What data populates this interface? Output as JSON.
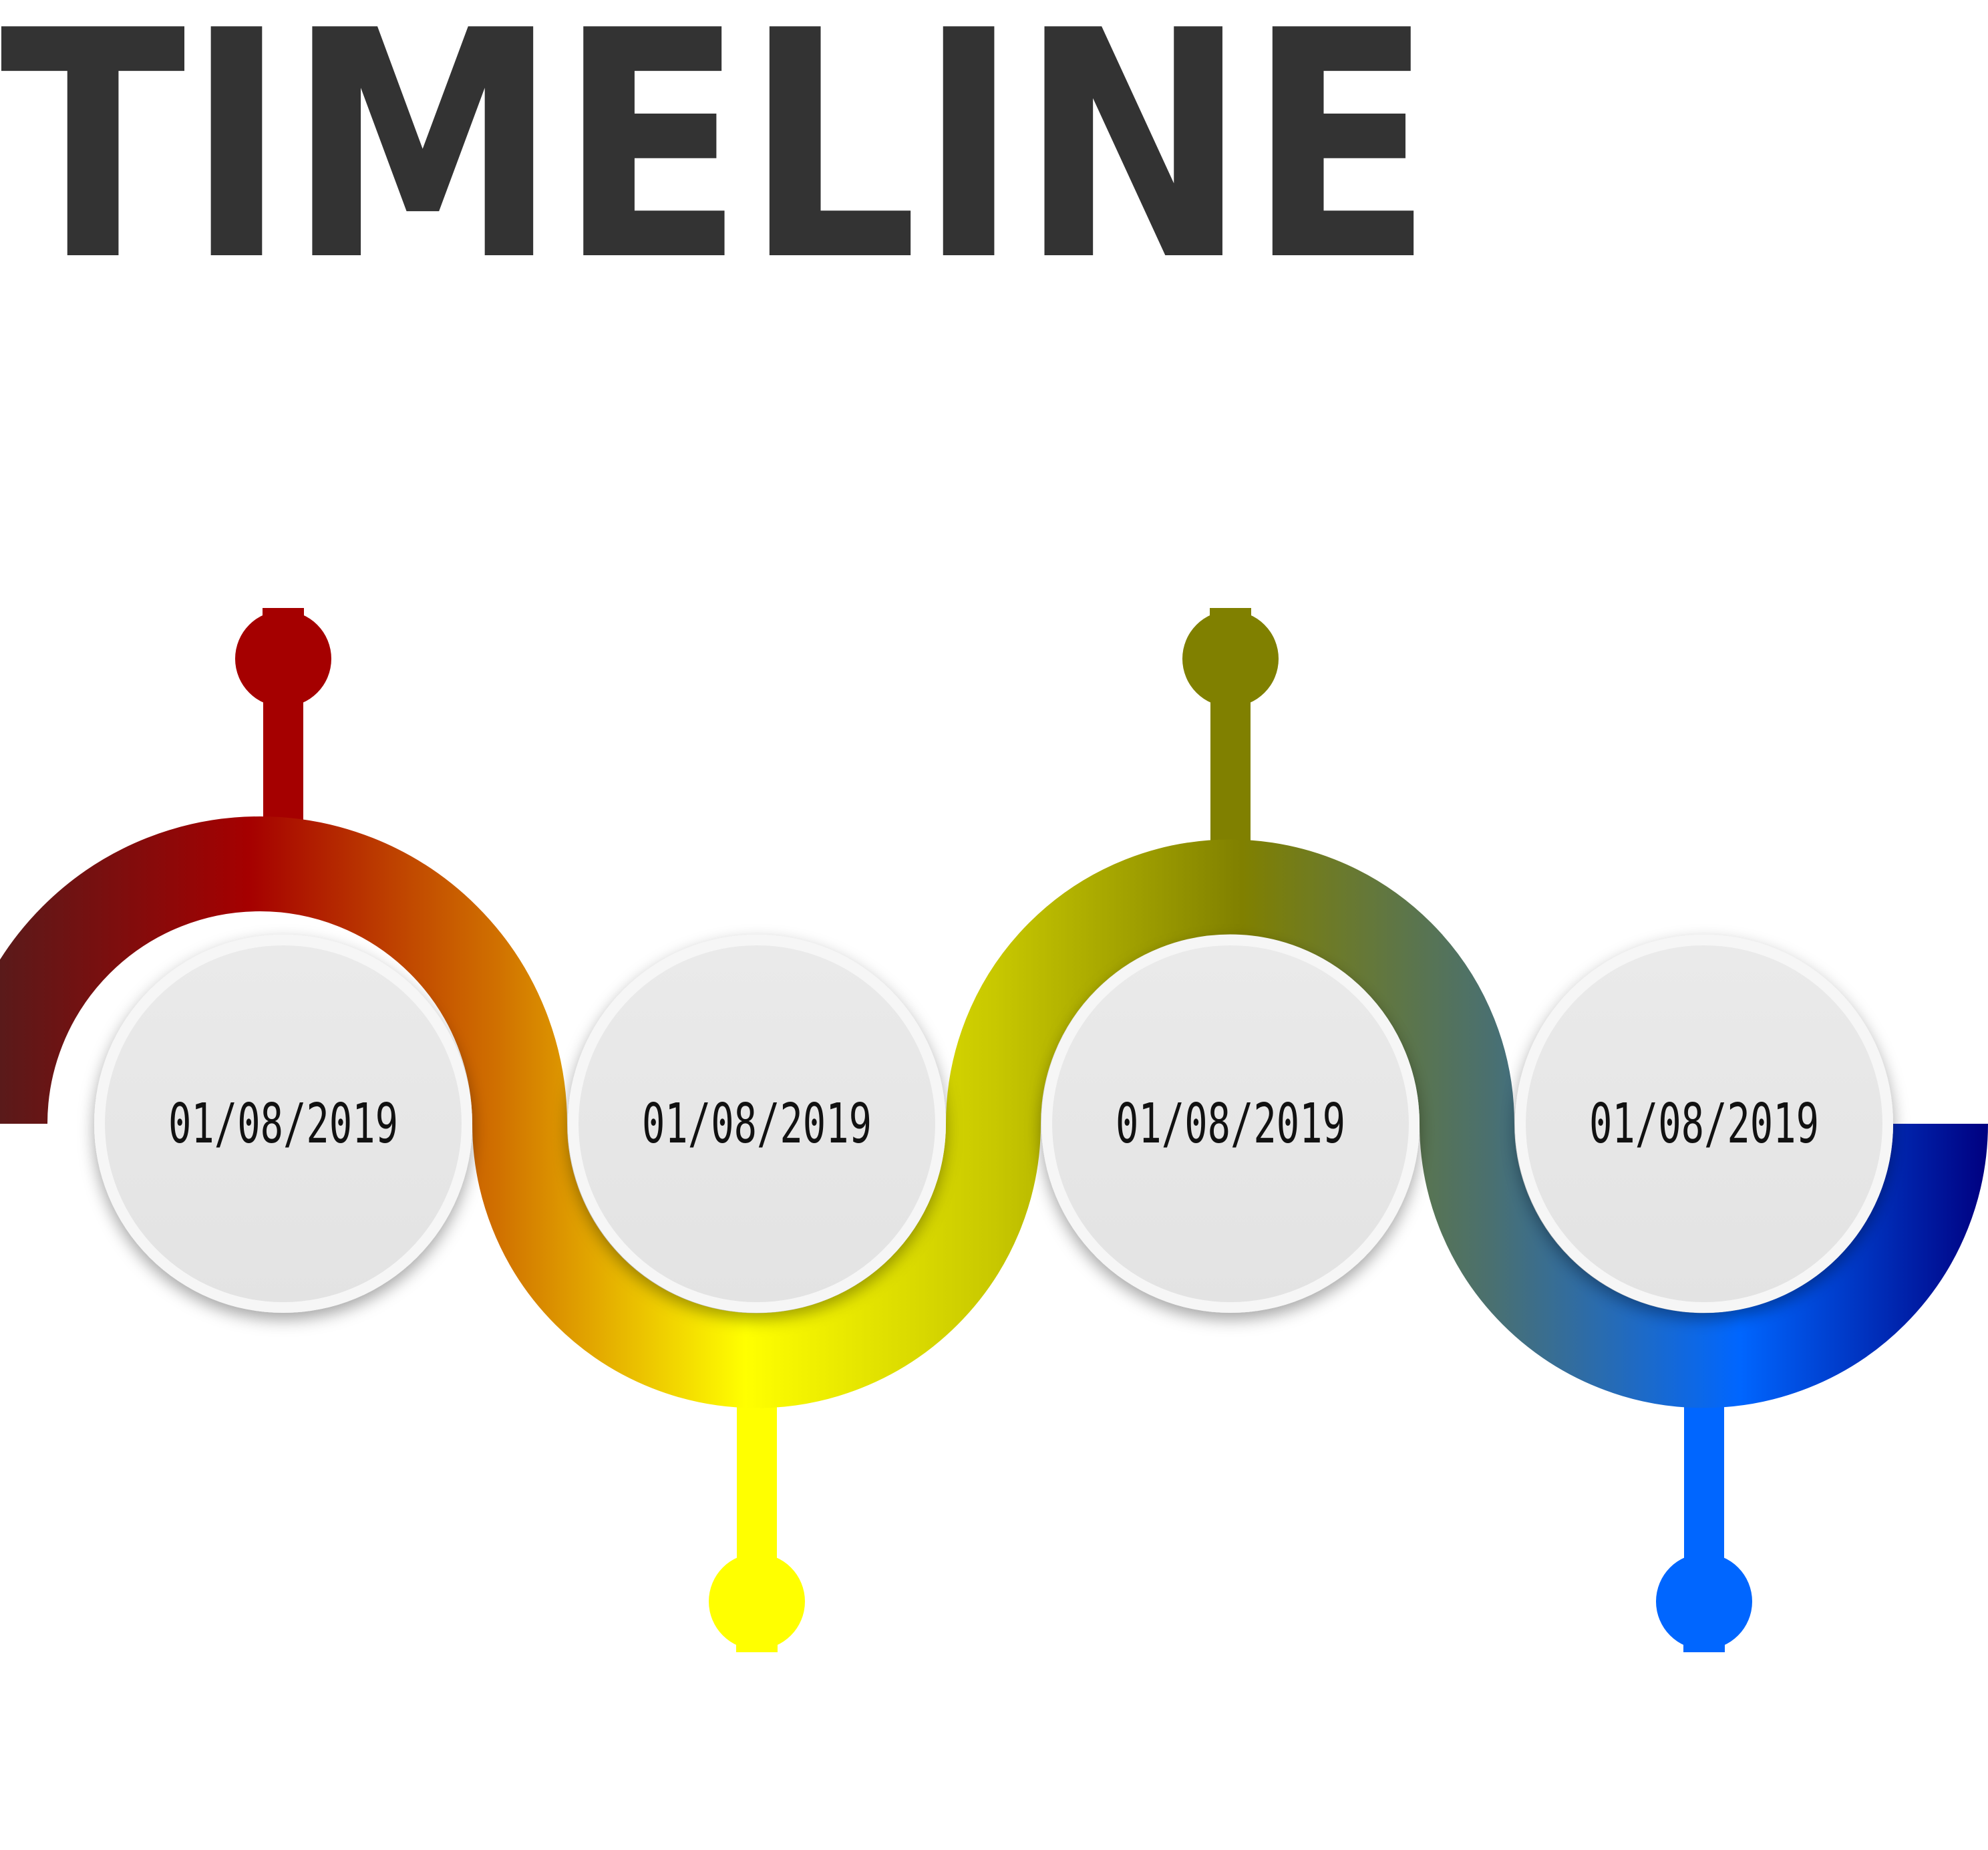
{
  "title": "TIMELINE",
  "colors": {
    "title": "#333333",
    "wave_gradient": [
      "#5a1a1a",
      "#a50000",
      "#d07000",
      "#ffff00",
      "#c8c800",
      "#808000",
      "#4a7070",
      "#0066ff",
      "#000080"
    ],
    "card_fill": "#e8e8e8",
    "card_border": "#f6f6f6",
    "date_text": "#111111"
  },
  "milestones": [
    {
      "date": "01/08/2019",
      "pin_color": "#a50000",
      "pin_side": "top"
    },
    {
      "date": "01/08/2019",
      "pin_color": "#ffff00",
      "pin_side": "bottom"
    },
    {
      "date": "01/08/2019",
      "pin_color": "#808000",
      "pin_side": "top"
    },
    {
      "date": "01/08/2019",
      "pin_color": "#0066ff",
      "pin_side": "bottom"
    }
  ]
}
